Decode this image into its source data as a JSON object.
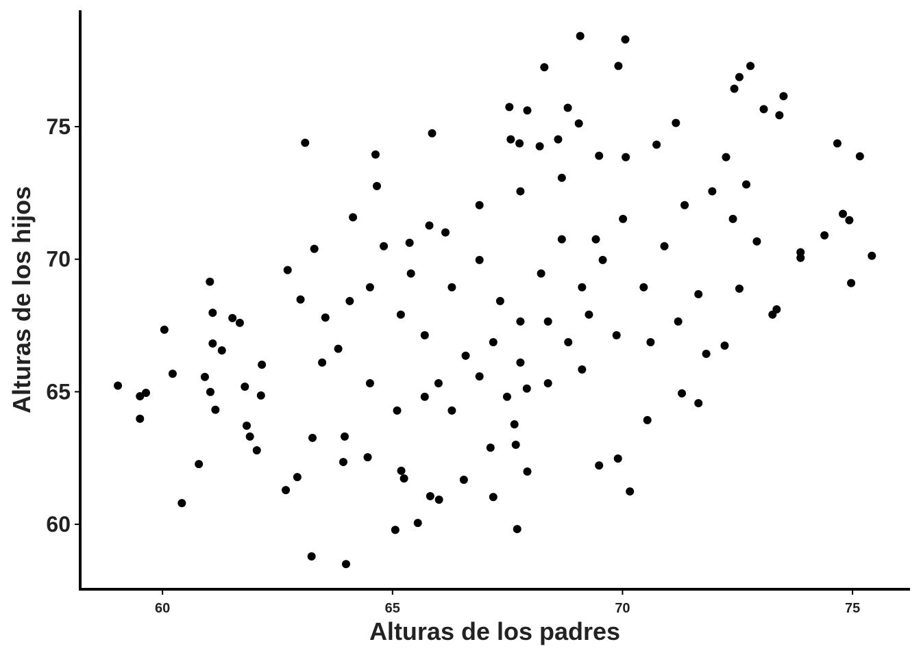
{
  "chart_data": {
    "type": "scatter",
    "x_label": "Alturas de los padres",
    "y_label": "Alturas de los hijos",
    "color": "#000000",
    "xlim": [
      58.21,
      76.25
    ],
    "ylim": [
      57.55,
      79.39
    ],
    "xticks": [
      60,
      65,
      70,
      75
    ],
    "yticks": [
      60,
      65,
      70,
      75
    ],
    "x": [
      59.03,
      59.51,
      59.64,
      59.51,
      60.04,
      60.22,
      60.42,
      60.79,
      60.92,
      61.03,
      61.04,
      61.09,
      61.09,
      61.15,
      61.29,
      61.52,
      61.68,
      61.79,
      61.83,
      61.9,
      62.05,
      62.14,
      62.16,
      63.1,
      63.24,
      63.99,
      65.06,
      65.55,
      67.71,
      65.86,
      64.63,
      69.08,
      70.06,
      68.3,
      69.91,
      72.78,
      72.54,
      72.43,
      73.5,
      73.07,
      73.41,
      74.67,
      75.16,
      75.42,
      74.97,
      74.79,
      74.93,
      74.39,
      73.87,
      73.87,
      73.35,
      73.26,
      70.54,
      70.16,
      69.9,
      69.49,
      71.65,
      71.29,
      72.22,
      71.82,
      67.92,
      67.93,
      67.68,
      67.65,
      67.19,
      67.13,
      66.55,
      66.01,
      65.82,
      65.19,
      65.25,
      64.46,
      63.93,
      62.93,
      62.68,
      63.26,
      63.96,
      72.54,
      72.92,
      67.54,
      67.93,
      68.81,
      69.05,
      67.57,
      67.76,
      68.2,
      68.6,
      70.74,
      71.16,
      70.07,
      69.49,
      65.37,
      65.8,
      64.66,
      64.14,
      63.3,
      62.72,
      63.0,
      63.54,
      63.82,
      64.51,
      65.18,
      65.7,
      66.29,
      66.89,
      67.34,
      67.78,
      68.23,
      68.68,
      69.12,
      69.57,
      70.01,
      70.46,
      70.91,
      71.35,
      71.95,
      72.4,
      72.69,
      72.25,
      66.0,
      66.59,
      67.19,
      67.78,
      68.38,
      68.82,
      69.27,
      69.87,
      70.61,
      71.21,
      71.65,
      66.89,
      67.78,
      68.68,
      66.15,
      65.4,
      64.81,
      64.07,
      63.47,
      64.51,
      65.1,
      65.7,
      66.29,
      66.89,
      67.49,
      68.38,
      69.12,
      69.42
    ],
    "y": [
      65.23,
      64.83,
      64.96,
      63.98,
      67.34,
      65.68,
      60.8,
      62.27,
      65.56,
      69.15,
      64.99,
      67.98,
      66.82,
      64.32,
      66.56,
      67.78,
      67.6,
      65.19,
      63.72,
      63.31,
      62.79,
      64.86,
      66.02,
      74.39,
      58.79,
      58.5,
      59.79,
      60.05,
      59.82,
      74.75,
      73.95,
      78.42,
      78.29,
      77.24,
      77.29,
      77.29,
      76.87,
      76.43,
      76.15,
      75.66,
      75.43,
      74.37,
      73.88,
      70.13,
      69.1,
      71.71,
      71.47,
      70.9,
      70.26,
      70.05,
      68.11,
      67.91,
      63.93,
      61.24,
      62.48,
      62.22,
      64.57,
      64.94,
      66.74,
      66.43,
      65.12,
      61.99,
      63.0,
      63.77,
      61.03,
      62.89,
      61.68,
      60.93,
      61.06,
      62.02,
      61.73,
      62.53,
      62.35,
      61.78,
      61.29,
      63.26,
      63.31,
      68.89,
      70.67,
      75.74,
      75.61,
      75.71,
      75.12,
      74.52,
      74.37,
      74.26,
      74.52,
      74.32,
      75.14,
      73.85,
      73.9,
      70.62,
      71.27,
      72.76,
      71.58,
      70.39,
      69.59,
      68.48,
      67.8,
      66.62,
      68.94,
      67.91,
      67.13,
      68.94,
      69.97,
      68.42,
      67.65,
      69.46,
      70.75,
      68.94,
      69.97,
      71.52,
      68.94,
      70.49,
      72.04,
      72.56,
      71.52,
      72.82,
      73.85,
      65.32,
      66.36,
      66.87,
      66.1,
      67.65,
      66.87,
      67.91,
      67.13,
      66.87,
      67.65,
      68.68,
      72.04,
      72.56,
      73.07,
      71.01,
      69.46,
      70.49,
      68.42,
      66.1,
      65.32,
      64.29,
      64.81,
      64.29,
      65.58,
      64.81,
      65.32,
      65.84,
      70.75
    ]
  }
}
